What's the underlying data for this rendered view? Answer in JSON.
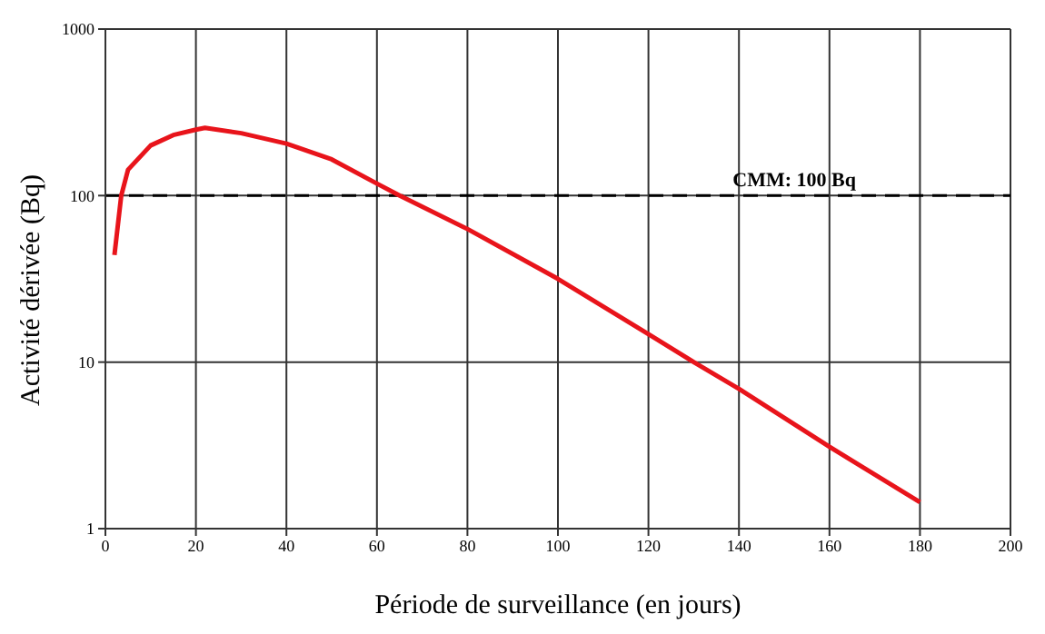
{
  "chart_data": {
    "type": "line",
    "xlabel": "Période de surveillance (en jours)",
    "ylabel": "Activité dérivée (Bq)",
    "log": "y",
    "grid": true,
    "legend": false,
    "marker": "none",
    "line_style": "solid",
    "x": [
      2,
      3.5,
      5,
      10,
      15,
      20,
      22,
      30,
      40,
      50,
      60,
      65,
      80,
      100,
      120,
      130,
      140,
      160,
      180
    ],
    "series": [
      {
        "color": "#e8141b",
        "values": [
          44,
          100,
          143,
          200,
          231,
          249,
          255,
          237,
          205,
          165,
          118,
          100,
          63,
          31.6,
          14.7,
          10,
          6.9,
          3.1,
          1.44
        ]
      }
    ],
    "xlim": [
      0,
      200
    ],
    "xticks": [
      0,
      20,
      40,
      60,
      80,
      100,
      120,
      140,
      160,
      180,
      200
    ],
    "ylim": [
      1,
      1000
    ],
    "yticks": [
      1,
      10,
      100,
      1000
    ],
    "ref_lines": [
      {
        "axis": "y",
        "value": 100,
        "label": "CMM: 100 Bq",
        "color": "#000000",
        "line_style": "dashed"
      }
    ]
  }
}
